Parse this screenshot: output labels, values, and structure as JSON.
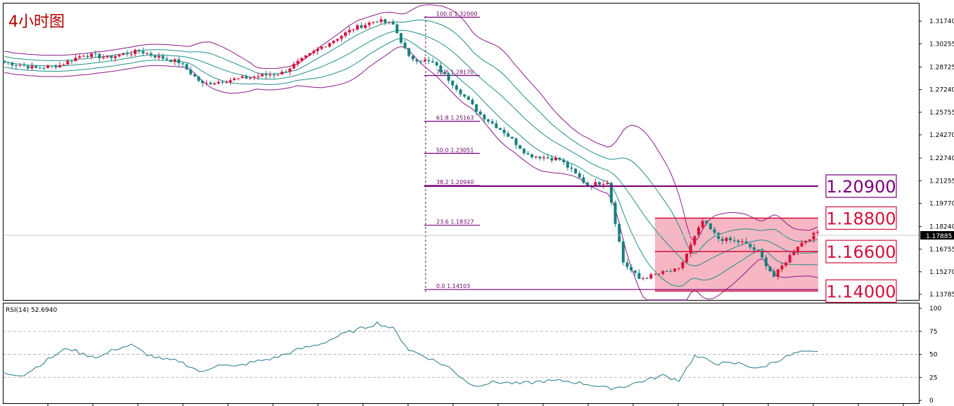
{
  "chart_data": [
    {
      "type": "candlestick",
      "title": "4小时图",
      "price_axis_ticks": [
        "1.31740",
        "1.30255",
        "1.28725",
        "1.27240",
        "1.25755",
        "1.24270",
        "1.22740",
        "1.21255",
        "1.19770",
        "1.18240",
        "1.16755",
        "1.15270",
        "1.13785"
      ],
      "ylim": [
        1.1342,
        1.329
      ],
      "current_price": "1.17885",
      "fibonacci": [
        {
          "ratio": "100.0",
          "price": "1.32000"
        },
        {
          "ratio": "78.6",
          "price": "1.28170"
        },
        {
          "ratio": "61.8",
          "price": "1.25163"
        },
        {
          "ratio": "50.0",
          "price": "1.23051"
        },
        {
          "ratio": "38.2",
          "price": "1.20940"
        },
        {
          "ratio": "23.6",
          "price": "1.18327"
        },
        {
          "ratio": "0.0",
          "price": "1.14103"
        }
      ],
      "levels": [
        {
          "label": "1.20900",
          "value": 1.209,
          "color": "#7a007a"
        },
        {
          "label": "1.18800",
          "value": 1.188,
          "color": "#d0103a"
        },
        {
          "label": "1.16600",
          "value": 1.166,
          "color": "#d0103a"
        },
        {
          "label": "1.14000",
          "value": 1.14,
          "color": "#d0103a"
        }
      ],
      "zone": {
        "high": 1.188,
        "low": 1.14,
        "color": "#f6a9b8"
      },
      "path_keypoints": [
        [
          0,
          1.2905
        ],
        [
          8,
          1.2865
        ],
        [
          14,
          1.2885
        ],
        [
          20,
          1.2955
        ],
        [
          26,
          1.2935
        ],
        [
          34,
          1.2978
        ],
        [
          38,
          1.2945
        ],
        [
          44,
          1.2905
        ],
        [
          50,
          1.276
        ],
        [
          56,
          1.2785
        ],
        [
          62,
          1.2805
        ],
        [
          70,
          1.2835
        ],
        [
          80,
          1.3005
        ],
        [
          88,
          1.3125
        ],
        [
          94,
          1.318
        ],
        [
          98,
          1.315
        ],
        [
          102,
          1.2935
        ],
        [
          108,
          1.29
        ],
        [
          113,
          1.2765
        ],
        [
          120,
          1.256
        ],
        [
          126,
          1.2445
        ],
        [
          132,
          1.2295
        ],
        [
          140,
          1.2265
        ],
        [
          147,
          1.2095
        ],
        [
          152,
          1.212
        ],
        [
          156,
          1.159
        ],
        [
          160,
          1.148
        ],
        [
          166,
          1.152
        ],
        [
          170,
          1.154
        ],
        [
          176,
          1.186
        ],
        [
          180,
          1.1745
        ],
        [
          186,
          1.172
        ],
        [
          190,
          1.1655
        ],
        [
          194,
          1.1495
        ],
        [
          200,
          1.17
        ],
        [
          205,
          1.1788
        ]
      ]
    },
    {
      "type": "line",
      "name": "RSI(14)",
      "indicator_label": "RSI(14) 52.6940",
      "ylim": [
        0,
        100
      ],
      "y_ticks": [
        "100",
        "75",
        "50",
        "25",
        "0"
      ],
      "levels": [
        75,
        50,
        25
      ],
      "keypoints": [
        [
          0,
          29
        ],
        [
          5,
          28
        ],
        [
          8,
          36
        ],
        [
          12,
          47
        ],
        [
          16,
          57
        ],
        [
          20,
          50
        ],
        [
          24,
          47
        ],
        [
          28,
          56
        ],
        [
          32,
          60
        ],
        [
          36,
          50
        ],
        [
          40,
          44
        ],
        [
          44,
          43
        ],
        [
          50,
          30
        ],
        [
          54,
          40
        ],
        [
          58,
          36
        ],
        [
          62,
          41
        ],
        [
          68,
          46
        ],
        [
          74,
          55
        ],
        [
          80,
          62
        ],
        [
          86,
          73
        ],
        [
          90,
          78
        ],
        [
          94,
          84
        ],
        [
          98,
          78
        ],
        [
          102,
          55
        ],
        [
          106,
          48
        ],
        [
          112,
          36
        ],
        [
          118,
          16
        ],
        [
          124,
          20
        ],
        [
          130,
          18
        ],
        [
          136,
          21
        ],
        [
          142,
          21
        ],
        [
          148,
          17
        ],
        [
          152,
          13
        ],
        [
          156,
          15
        ],
        [
          160,
          20
        ],
        [
          166,
          27
        ],
        [
          170,
          22
        ],
        [
          174,
          48
        ],
        [
          180,
          40
        ],
        [
          186,
          40
        ],
        [
          190,
          34
        ],
        [
          194,
          42
        ],
        [
          200,
          52
        ],
        [
          205,
          52
        ]
      ]
    }
  ]
}
